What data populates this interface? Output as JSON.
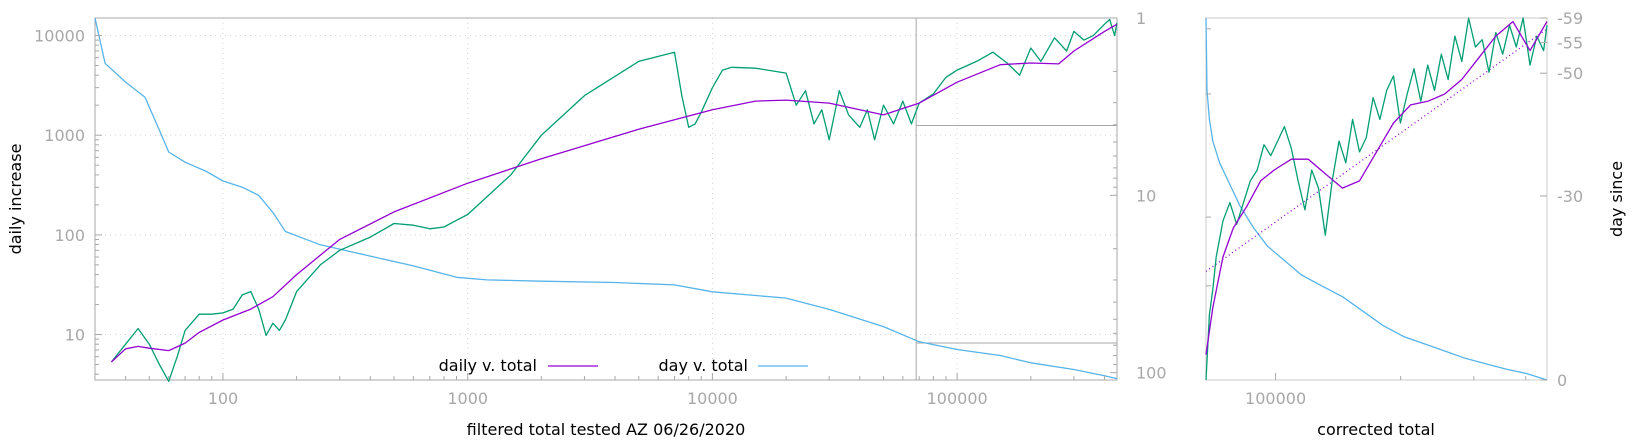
{
  "colors": {
    "fit": "#9400d3",
    "raw": "#009e73",
    "day": "#56b4e9",
    "axis": "#a8a8a8",
    "grid": "#d4d4d4"
  },
  "chart_data": [
    {
      "type": "line",
      "title": "",
      "xlabel": "filtered total tested AZ 06/26/2020",
      "ylabel": "daily increase",
      "xscale": "log",
      "yscale": "log",
      "xlim": [
        30,
        450000
      ],
      "ylim": [
        3.5,
        15000
      ],
      "xticks": [
        {
          "value": 100,
          "label": "100"
        },
        {
          "value": 1000,
          "label": "1000"
        },
        {
          "value": 10000,
          "label": "10000"
        },
        {
          "value": 100000,
          "label": "100000"
        }
      ],
      "yticks": [
        {
          "value": 10,
          "label": "10"
        },
        {
          "value": 100,
          "label": "100"
        },
        {
          "value": 1000,
          "label": "1000"
        },
        {
          "value": 10000,
          "label": "10000"
        }
      ],
      "y2label": "",
      "y2scale": "log",
      "y2lim": [
        1,
        110
      ],
      "y2reversed": true,
      "y2ticks": [
        {
          "value": 1,
          "label": "1"
        },
        {
          "value": 10,
          "label": "10"
        },
        {
          "value": 100,
          "label": "100"
        }
      ],
      "grid": true,
      "legend_position": "bottom-center",
      "legend": [
        {
          "label": "daily v. total",
          "series": "fit"
        },
        {
          "label": "day v. total",
          "series": "day"
        }
      ],
      "series": [
        {
          "name": "daily v. total",
          "key": "fit",
          "axis": "y",
          "x": [
            35,
            40,
            45,
            50,
            60,
            70,
            80,
            100,
            130,
            160,
            200,
            300,
            500,
            1000,
            2000,
            5000,
            10000,
            15000,
            20000,
            30000,
            50000,
            70000,
            100000,
            150000,
            200000,
            260000,
            300000,
            400000,
            450000
          ],
          "y": [
            5.3,
            7.2,
            7.6,
            7.3,
            6.9,
            8.2,
            10.5,
            14,
            18,
            24,
            40,
            90,
            170,
            330,
            580,
            1150,
            1800,
            2200,
            2250,
            2100,
            1600,
            2100,
            3400,
            5100,
            5300,
            5200,
            7000,
            11000,
            13000
          ]
        },
        {
          "key": "raw",
          "axis": "y",
          "x": [
            35,
            40,
            45,
            50,
            55,
            60,
            65,
            70,
            80,
            90,
            100,
            110,
            120,
            130,
            140,
            150,
            160,
            170,
            180,
            200,
            250,
            300,
            400,
            500,
            600,
            700,
            800,
            900,
            1000,
            1500,
            2000,
            3000,
            5000,
            7000,
            7500,
            8000,
            8500,
            9000,
            10000,
            11000,
            12000,
            15000,
            20000,
            22000,
            24000,
            26000,
            28000,
            30000,
            33000,
            36000,
            40000,
            43000,
            46000,
            50000,
            55000,
            60000,
            65000,
            70000,
            80000,
            90000,
            100000,
            120000,
            140000,
            160000,
            180000,
            200000,
            220000,
            250000,
            280000,
            300000,
            330000,
            360000,
            400000,
            420000,
            440000,
            450000
          ],
          "y": [
            5.3,
            8,
            11.5,
            8,
            5,
            3.4,
            6,
            11,
            16,
            16,
            16.5,
            18,
            25,
            27,
            18,
            9.8,
            13,
            11,
            14,
            27,
            50,
            70,
            95,
            130,
            125,
            115,
            120,
            140,
            160,
            400,
            1000,
            2500,
            5500,
            6800,
            2500,
            1200,
            1300,
            1700,
            3000,
            4500,
            4800,
            4700,
            4200,
            2000,
            2800,
            1300,
            1800,
            900,
            2800,
            1600,
            1200,
            1800,
            900,
            2000,
            1300,
            2200,
            1300,
            2100,
            2600,
            3800,
            4500,
            5500,
            6800,
            5300,
            4000,
            7500,
            5500,
            9500,
            7000,
            11000,
            9000,
            10000,
            13000,
            14500,
            10000,
            13500
          ]
        },
        {
          "name": "day v. total",
          "key": "day",
          "axis": "y2",
          "x": [
            30,
            33,
            40,
            48,
            55,
            60,
            70,
            85,
            100,
            120,
            140,
            160,
            180,
            250,
            400,
            600,
            900,
            1200,
            2000,
            4000,
            7000,
            10000,
            20000,
            30000,
            50000,
            70000,
            100000,
            150000,
            200000,
            300000,
            400000,
            450000
          ],
          "y": [
            1,
            1.8,
            2.3,
            2.8,
            4.3,
            5.7,
            6.5,
            7.3,
            8.3,
            9,
            10,
            12.5,
            16,
            19,
            22,
            25,
            29,
            30,
            30.5,
            31,
            32,
            35,
            38,
            44,
            55,
            67,
            74,
            80,
            88,
            96,
            104,
            108
          ]
        }
      ],
      "inset_box": {
        "x_from": 68000,
        "y_fit_from": 1250,
        "y_day_from": 68
      }
    },
    {
      "type": "line",
      "title": "",
      "xlabel": "corrected total",
      "y2label": "day since",
      "xscale": "log",
      "xlim": [
        68000,
        450000
      ],
      "xticks": [
        {
          "value": 100000,
          "label": "100000"
        }
      ],
      "y2lim": [
        -59,
        0
      ],
      "y2ticks": [
        {
          "value": -59,
          "label": "-59"
        },
        {
          "value": -55,
          "label": "-55"
        },
        {
          "value": -50,
          "label": "-50"
        },
        {
          "value": -30,
          "label": "-30"
        },
        {
          "value": 0,
          "label": "0"
        }
      ],
      "grid": false,
      "series": [
        {
          "key": "fit",
          "xnorm": [
            0,
            0.02,
            0.05,
            0.08,
            0.12,
            0.16,
            0.2,
            0.25,
            0.3,
            0.35,
            0.4,
            0.45,
            0.5,
            0.55,
            0.6,
            0.65,
            0.7,
            0.75,
            0.8,
            0.85,
            0.9,
            0.95,
            1.0
          ],
          "ynorm": [
            0.07,
            0.2,
            0.34,
            0.42,
            0.48,
            0.55,
            0.58,
            0.61,
            0.61,
            0.57,
            0.53,
            0.55,
            0.63,
            0.71,
            0.76,
            0.77,
            0.79,
            0.83,
            0.89,
            0.95,
            0.99,
            0.91,
            0.99
          ]
        },
        {
          "key": "trend",
          "xnorm": [
            0,
            1.0
          ],
          "ynorm": [
            0.3,
            0.97
          ]
        },
        {
          "key": "raw",
          "xnorm": [
            0,
            0.01,
            0.02,
            0.03,
            0.05,
            0.07,
            0.09,
            0.11,
            0.13,
            0.15,
            0.17,
            0.19,
            0.21,
            0.23,
            0.25,
            0.27,
            0.29,
            0.31,
            0.33,
            0.35,
            0.37,
            0.39,
            0.41,
            0.43,
            0.45,
            0.47,
            0.49,
            0.51,
            0.53,
            0.55,
            0.57,
            0.59,
            0.61,
            0.63,
            0.65,
            0.67,
            0.69,
            0.71,
            0.73,
            0.75,
            0.77,
            0.79,
            0.81,
            0.83,
            0.85,
            0.87,
            0.89,
            0.91,
            0.93,
            0.95,
            0.97,
            0.99,
            1.0
          ],
          "ynorm": [
            0.0,
            0.18,
            0.25,
            0.34,
            0.44,
            0.49,
            0.43,
            0.49,
            0.55,
            0.58,
            0.65,
            0.62,
            0.66,
            0.7,
            0.64,
            0.55,
            0.47,
            0.58,
            0.53,
            0.4,
            0.55,
            0.66,
            0.6,
            0.72,
            0.63,
            0.67,
            0.78,
            0.72,
            0.8,
            0.84,
            0.71,
            0.79,
            0.86,
            0.77,
            0.87,
            0.8,
            0.9,
            0.83,
            0.95,
            0.88,
            1.0,
            0.92,
            0.94,
            0.85,
            0.96,
            0.9,
            0.98,
            0.92,
            1.0,
            0.87,
            0.95,
            0.91,
            0.98
          ]
        },
        {
          "key": "day",
          "xnorm": [
            0,
            0.003,
            0.01,
            0.02,
            0.04,
            0.07,
            0.1,
            0.14,
            0.18,
            0.23,
            0.28,
            0.34,
            0.4,
            0.46,
            0.52,
            0.58,
            0.64,
            0.7,
            0.76,
            0.82,
            0.88,
            0.94,
            1.0
          ],
          "ynorm": [
            1.0,
            0.8,
            0.72,
            0.66,
            0.6,
            0.54,
            0.48,
            0.42,
            0.37,
            0.33,
            0.29,
            0.26,
            0.23,
            0.19,
            0.15,
            0.12,
            0.1,
            0.08,
            0.06,
            0.045,
            0.03,
            0.018,
            0.0
          ]
        }
      ]
    }
  ]
}
